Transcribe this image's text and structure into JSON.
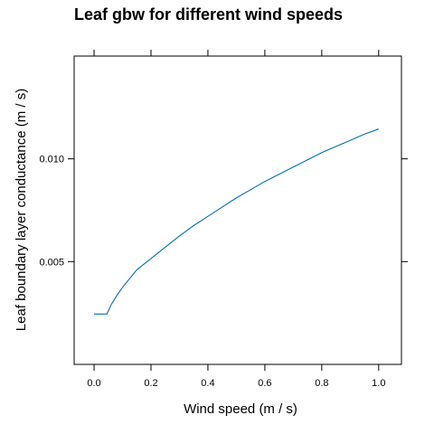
{
  "chart_data": {
    "type": "line",
    "title": "Leaf gbw for different wind speeds",
    "xlabel": "Wind speed (m / s)",
    "ylabel": "Leaf boundary layer conductance (m / s)",
    "xlim": [
      -0.07,
      1.08
    ],
    "ylim": [
      0.0,
      0.015
    ],
    "xticks": [
      0.0,
      0.2,
      0.4,
      0.6,
      0.8,
      1.0
    ],
    "xtick_labels": [
      "0.0",
      "0.2",
      "0.4",
      "0.6",
      "0.8",
      "1.0"
    ],
    "yticks": [
      0.005,
      0.01
    ],
    "ytick_labels": [
      "0.005",
      "0.010"
    ],
    "grid": false,
    "series": [
      {
        "color": "#0072b2",
        "x": [
          0.0,
          0.02,
          0.04,
          0.045,
          0.06,
          0.08,
          0.1,
          0.15,
          0.2,
          0.25,
          0.3,
          0.35,
          0.4,
          0.45,
          0.5,
          0.55,
          0.6,
          0.65,
          0.7,
          0.75,
          0.8,
          0.85,
          0.9,
          0.95,
          1.0
        ],
        "y": [
          0.00245,
          0.00245,
          0.00245,
          0.00245,
          0.0029,
          0.00335,
          0.00375,
          0.0046,
          0.00515,
          0.0057,
          0.00625,
          0.00675,
          0.0072,
          0.00765,
          0.0081,
          0.0085,
          0.0089,
          0.00925,
          0.0096,
          0.00995,
          0.0103,
          0.0106,
          0.0109,
          0.0112,
          0.01145
        ]
      }
    ]
  }
}
